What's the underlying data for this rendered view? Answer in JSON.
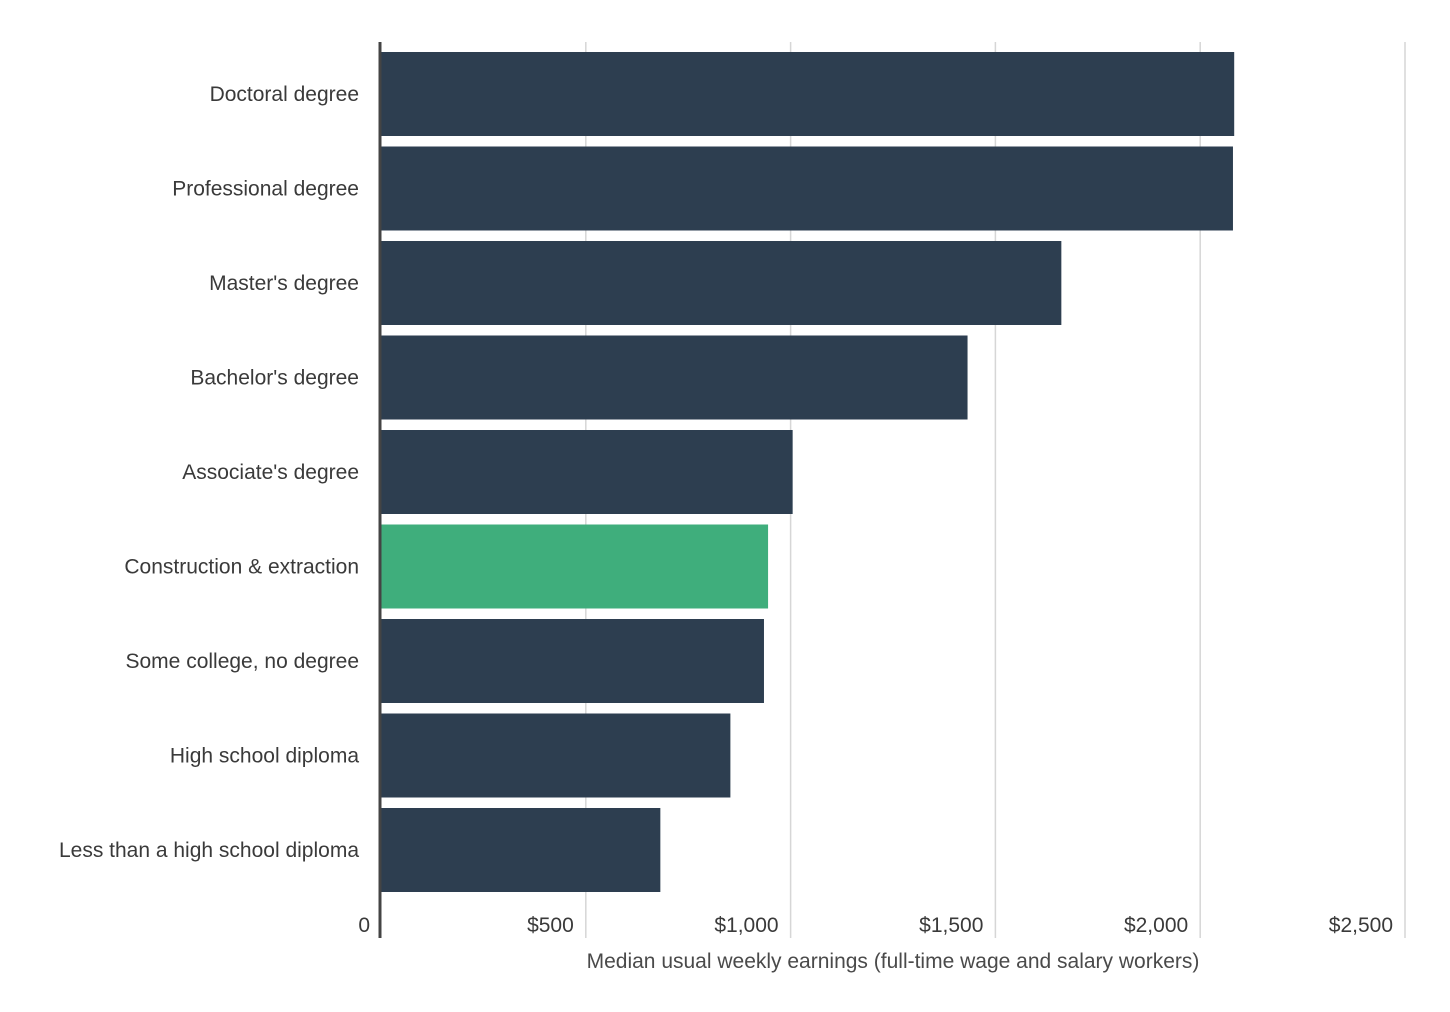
{
  "chart_data": {
    "type": "bar",
    "orientation": "horizontal",
    "categories": [
      "Doctoral degree",
      "Professional degree",
      "Master's degree",
      "Bachelor's degree",
      "Associate's degree",
      "Construction & extraction",
      "Some college, no degree",
      "High school diploma",
      "Less than a high school diploma"
    ],
    "values": [
      2083,
      2080,
      1661,
      1432,
      1005,
      945,
      935,
      853,
      682
    ],
    "highlight_category": "Construction & extraction",
    "colors": {
      "default": "#2d3e50",
      "highlight": "#3fae7c",
      "grid": "#d6d6d6",
      "axis": "#444444"
    },
    "xlabel": "Median usual weekly earnings (full-time wage and salary workers)",
    "ylabel": "",
    "title": "",
    "xlim": [
      0,
      2500
    ],
    "xticks": [
      {
        "value": 0,
        "label": "0"
      },
      {
        "value": 500,
        "label": "$500"
      },
      {
        "value": 1000,
        "label": "$1,000"
      },
      {
        "value": 1500,
        "label": "$1,500"
      },
      {
        "value": 2000,
        "label": "$2,000"
      },
      {
        "value": 2500,
        "label": "$2,500"
      }
    ],
    "grid": true,
    "legend": "none"
  }
}
